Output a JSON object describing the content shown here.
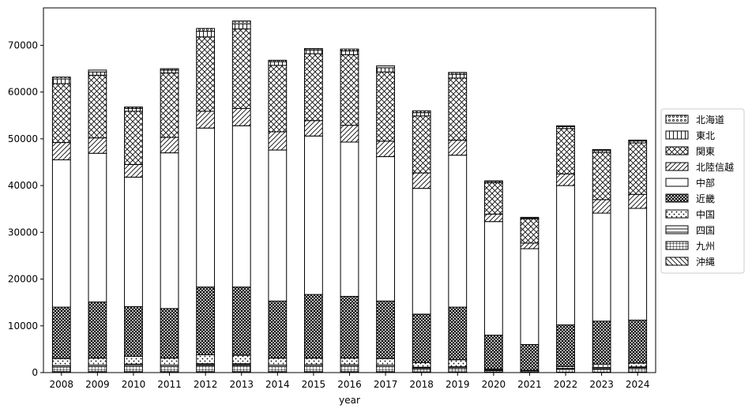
{
  "chart_data": {
    "type": "bar",
    "stacked": true,
    "xlabel": "year",
    "ylabel": "",
    "ylim": [
      0,
      78000
    ],
    "yticks": [
      0,
      10000,
      20000,
      30000,
      40000,
      50000,
      60000,
      70000
    ],
    "grid": false,
    "legend_position": "right",
    "categories": [
      "2008",
      "2009",
      "2010",
      "2011",
      "2012",
      "2013",
      "2014",
      "2015",
      "2016",
      "2017",
      "2018",
      "2019",
      "2020",
      "2021",
      "2022",
      "2023",
      "2024"
    ],
    "series": [
      {
        "name": "沖縄",
        "pattern": "diag",
        "values": [
          200,
          200,
          200,
          200,
          200,
          200,
          200,
          200,
          200,
          200,
          150,
          150,
          100,
          80,
          100,
          100,
          120
        ]
      },
      {
        "name": "九州",
        "pattern": "grid",
        "values": [
          1000,
          1100,
          1200,
          1100,
          1300,
          1300,
          1100,
          1200,
          1200,
          1100,
          700,
          800,
          300,
          250,
          600,
          700,
          800
        ]
      },
      {
        "name": "四国",
        "pattern": "hline",
        "values": [
          300,
          300,
          400,
          300,
          400,
          400,
          300,
          300,
          300,
          300,
          300,
          300,
          100,
          70,
          200,
          300,
          300
        ]
      },
      {
        "name": "中国",
        "pattern": "dots",
        "values": [
          1500,
          1500,
          1700,
          1500,
          1900,
          1800,
          1500,
          1400,
          1400,
          1400,
          1000,
          1500,
          200,
          100,
          400,
          700,
          800
        ]
      },
      {
        "name": "近畿",
        "pattern": "dense",
        "values": [
          11000,
          12000,
          10600,
          10600,
          14500,
          14600,
          12200,
          13600,
          13200,
          12300,
          10350,
          11250,
          7300,
          5500,
          8900,
          9200,
          9200
        ]
      },
      {
        "name": "中部",
        "pattern": "plain",
        "values": [
          31500,
          31800,
          27700,
          33300,
          34000,
          34500,
          32300,
          33900,
          33000,
          30900,
          26900,
          32500,
          24300,
          20500,
          29800,
          23100,
          23900
        ]
      },
      {
        "name": "北陸信越",
        "pattern": "slash",
        "values": [
          3700,
          3300,
          2700,
          3300,
          3600,
          3700,
          3900,
          3300,
          3600,
          3300,
          3300,
          3200,
          1600,
          1200,
          2500,
          2900,
          3000
        ]
      },
      {
        "name": "関東",
        "pattern": "xhatch",
        "values": [
          12600,
          13400,
          11400,
          13800,
          15900,
          17000,
          14200,
          14300,
          15100,
          14800,
          12200,
          13300,
          6700,
          5200,
          9700,
          10100,
          11000
        ]
      },
      {
        "name": "東北",
        "pattern": "vline",
        "values": [
          1000,
          700,
          600,
          600,
          1200,
          1100,
          800,
          800,
          800,
          900,
          700,
          800,
          300,
          200,
          400,
          400,
          400
        ]
      },
      {
        "name": "北海道",
        "pattern": "ring",
        "values": [
          400,
          400,
          300,
          300,
          600,
          600,
          300,
          300,
          400,
          400,
          400,
          400,
          100,
          100,
          200,
          200,
          200
        ]
      }
    ]
  }
}
